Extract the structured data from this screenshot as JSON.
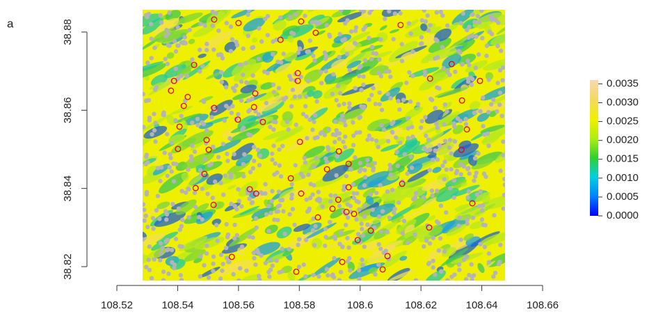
{
  "panel_label": "a",
  "chart_data": {
    "type": "scatter",
    "xlim": [
      108.52,
      108.66
    ],
    "ylim": [
      38.82,
      38.88
    ],
    "xticks": [
      108.52,
      108.54,
      108.56,
      108.58,
      108.6,
      108.62,
      108.64,
      108.66
    ],
    "yticks": [
      38.82,
      38.84,
      38.86,
      38.88
    ],
    "series": [
      {
        "color": "#e8001c",
        "x": [
          108.552,
          108.56,
          108.5806,
          108.6133,
          108.5738,
          108.5854,
          108.5454,
          108.5388,
          108.5378,
          108.5433,
          108.542,
          108.5655,
          108.5795,
          108.5795,
          108.623,
          108.6301,
          108.6394,
          108.6335,
          108.552,
          108.5651,
          108.5598,
          108.568,
          108.5406,
          108.5495,
          108.5502,
          108.5802,
          108.593,
          108.5401,
          108.6351,
          108.6333,
          108.5488,
          108.5891,
          108.5962,
          108.5459,
          108.5637,
          108.5658,
          108.5772,
          108.5806,
          108.5962,
          108.6138,
          108.5518,
          108.5909,
          108.5928,
          108.5955,
          108.598,
          108.5861,
          108.5992,
          108.6035,
          108.6227,
          108.6369,
          108.5578,
          108.579,
          108.5941,
          108.6074,
          108.609
        ],
        "values": [
          38.8832,
          38.8823,
          38.8827,
          38.8818,
          38.878,
          38.8798,
          38.8716,
          38.8675,
          38.865,
          38.8634,
          38.8611,
          38.8643,
          38.8695,
          38.8675,
          38.8681,
          38.8718,
          38.8675,
          38.8625,
          38.8606,
          38.8608,
          38.8576,
          38.857,
          38.8558,
          38.8524,
          38.8499,
          38.8519,
          38.8495,
          38.8501,
          38.8551,
          38.8499,
          38.8437,
          38.8449,
          38.8463,
          38.8401,
          38.8398,
          38.8387,
          38.8426,
          38.8387,
          38.8403,
          38.8412,
          38.8358,
          38.8348,
          38.8371,
          38.834,
          38.8335,
          38.8326,
          38.8268,
          38.8292,
          38.83,
          38.8362,
          38.8225,
          38.8187,
          38.8212,
          38.8193,
          38.8227
        ]
      }
    ],
    "colorbar": {
      "lim": [
        0,
        0.0036
      ],
      "colors": [
        "#0000ff",
        "#0080ff",
        "#00d0e0",
        "#30d030",
        "#b0ee10",
        "#f0f000",
        "#f5d860",
        "#f8d8b0"
      ],
      "ticks": [
        {
          "value": 0,
          "label": "0.0000"
        },
        {
          "value": 0.0005,
          "label": "0.0005"
        },
        {
          "value": 0.001,
          "label": "0.0010"
        },
        {
          "value": 0.0015,
          "label": "0.0015"
        },
        {
          "value": 0.002,
          "label": "0.0020"
        },
        {
          "value": 0.0025,
          "label": "0.0025"
        },
        {
          "value": 0.003,
          "label": "0.0030"
        },
        {
          "value": 0.0035,
          "label": "0.0035"
        }
      ]
    }
  }
}
